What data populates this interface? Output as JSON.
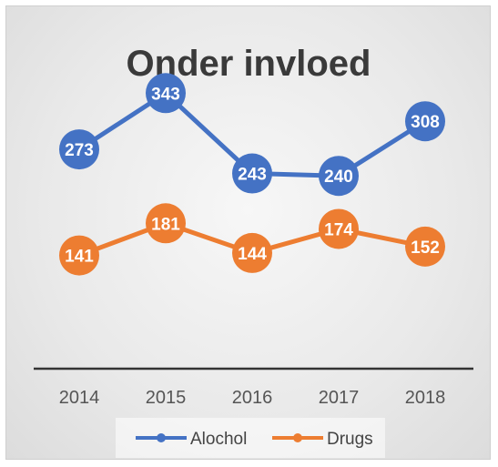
{
  "chart_data": {
    "type": "line",
    "title": "Onder invloed",
    "categories": [
      "2014",
      "2015",
      "2016",
      "2017",
      "2018"
    ],
    "series": [
      {
        "name": "Alochol",
        "values": [
          273,
          343,
          243,
          240,
          308
        ],
        "color": "#4472c4"
      },
      {
        "name": "Drugs",
        "values": [
          141,
          181,
          144,
          174,
          152
        ],
        "color": "#ed7d31"
      }
    ],
    "ylim": [
      0,
      400
    ],
    "grid": false,
    "legend": "bottom"
  }
}
